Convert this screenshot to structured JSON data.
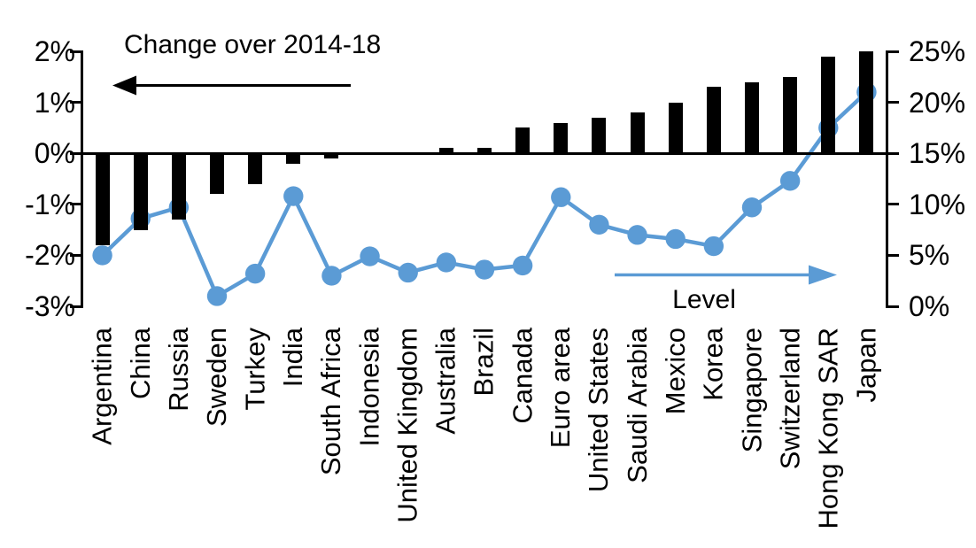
{
  "labels": {
    "left_series_title": "Change over 2014-18",
    "right_series_title": "Level"
  },
  "left_axis": {
    "tick_labels": [
      "2%",
      "1%",
      "0%",
      "-1%",
      "-2%",
      "-3%"
    ],
    "tick_values": [
      2,
      1,
      0,
      -1,
      -2,
      -3
    ],
    "min": -3,
    "max": 2
  },
  "right_axis": {
    "tick_labels": [
      "25%",
      "20%",
      "15%",
      "10%",
      "5%",
      "0%"
    ],
    "tick_values": [
      25,
      20,
      15,
      10,
      5,
      0
    ],
    "min": 0,
    "max": 25
  },
  "colors": {
    "bar": "#000000",
    "line": "#5B9BD5",
    "text": "#000000",
    "background": "#FFFFFF"
  },
  "chart_data": {
    "type": "bar",
    "subtype": "dual-axis bar + line",
    "categories": [
      "Argentina",
      "China",
      "Russia",
      "Sweden",
      "Turkey",
      "India",
      "South Africa",
      "Indonesia",
      "United Kingdom",
      "Australia",
      "Brazil",
      "Canada",
      "Euro area",
      "United States",
      "Saudi Arabia",
      "Mexico",
      "Korea",
      "Singapore",
      "Switzerland",
      "Hong Kong SAR",
      "Japan"
    ],
    "series": [
      {
        "name": "Change over 2014-18",
        "type": "bar",
        "axis": "left",
        "color": "#000000",
        "values": [
          -1.8,
          -1.5,
          -1.3,
          -0.8,
          -0.6,
          -0.2,
          -0.1,
          0,
          0,
          0.1,
          0.1,
          0.5,
          0.6,
          0.7,
          0.8,
          1.0,
          1.3,
          1.4,
          1.5,
          1.9,
          2.0
        ]
      },
      {
        "name": "Level",
        "type": "line",
        "axis": "right",
        "color": "#5B9BD5",
        "values": [
          5.0,
          8.6,
          9.7,
          1.0,
          3.2,
          10.8,
          3.0,
          4.9,
          3.3,
          4.3,
          3.6,
          4.0,
          10.7,
          8.0,
          7.0,
          6.6,
          5.9,
          9.7,
          12.3,
          17.5,
          21.0
        ]
      }
    ],
    "left_ylim": [
      -3,
      2
    ],
    "right_ylim": [
      0,
      25
    ],
    "grid": false,
    "legend": "in-plot text with direction arrows"
  }
}
